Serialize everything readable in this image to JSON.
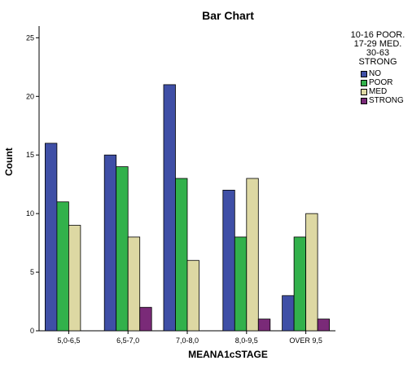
{
  "chart_data": {
    "type": "bar",
    "title": "Bar Chart",
    "xlabel": "MEANA1cSTAGE",
    "ylabel": "Count",
    "ylim": [
      0,
      26
    ],
    "yticks": [
      "0",
      "5",
      "10",
      "15",
      "20",
      "25"
    ],
    "grid": false,
    "legend_position": "top-right",
    "categories": [
      "5,0-6,5",
      "6,5-7,0",
      "7,0-8,0",
      "8,0-9,5",
      "OVER 9,5"
    ],
    "series": [
      {
        "name": "NO",
        "color": "#3f4fa6",
        "values": [
          16,
          15,
          21,
          12,
          3
        ]
      },
      {
        "name": "POOR",
        "color": "#32b14b",
        "values": [
          11,
          14,
          13,
          8,
          8
        ]
      },
      {
        "name": "MED",
        "color": "#ddd8a3",
        "values": [
          9,
          8,
          6,
          13,
          10
        ]
      },
      {
        "name": "STRONG",
        "color": "#7a2a78",
        "values": [
          0,
          2,
          0,
          1,
          1
        ]
      }
    ],
    "legend": {
      "title_lines": [
        "10-16 POOR.",
        "17-29 MED.",
        "30-63",
        "STRONG"
      ],
      "items": [
        {
          "label": "NO",
          "color": "#3f4fa6"
        },
        {
          "label": "POOR",
          "color": "#32b14b"
        },
        {
          "label": "MED",
          "color": "#ddd8a3"
        },
        {
          "label": "STRONG",
          "color": "#7a2a78"
        }
      ]
    }
  }
}
